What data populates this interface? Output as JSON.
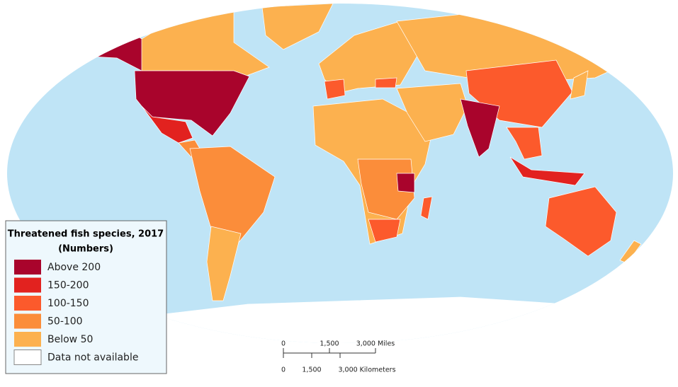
{
  "legend": {
    "title": "Threatened fish species, 2017",
    "subtitle": "(Numbers)",
    "items": [
      {
        "label": "Above 200",
        "color": "#a9042c"
      },
      {
        "label": "150-200",
        "color": "#e2221f"
      },
      {
        "label": "100-150",
        "color": "#fc5a2c"
      },
      {
        "label": "50-100",
        "color": "#fb8d3a"
      },
      {
        "label": "Below 50",
        "color": "#fcb14f"
      },
      {
        "label": "Data not available",
        "color": "#ffffff"
      }
    ]
  },
  "scale_bar": {
    "miles": [
      "0",
      "1,500",
      "3,000 Miles"
    ],
    "kilometers": [
      "0",
      "1,500",
      "3,000 Kilometers"
    ]
  }
}
